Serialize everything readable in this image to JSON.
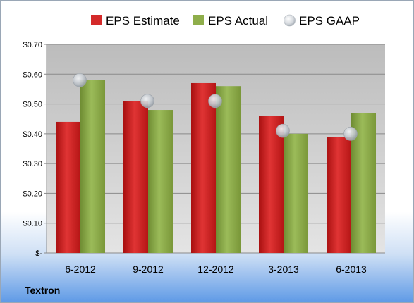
{
  "company": "Textron",
  "chart_data": {
    "type": "bar",
    "categories": [
      "6-2012",
      "9-2012",
      "12-2012",
      "3-2013",
      "6-2013"
    ],
    "series": [
      {
        "name": "EPS Estimate",
        "type": "bar",
        "color": "#c41e1e",
        "values": [
          0.44,
          0.51,
          0.57,
          0.46,
          0.39
        ]
      },
      {
        "name": "EPS Actual",
        "type": "bar",
        "color": "#86a443",
        "values": [
          0.58,
          0.48,
          0.56,
          0.4,
          0.47
        ]
      },
      {
        "name": "EPS GAAP",
        "type": "scatter",
        "color": "#c7ccd3",
        "values": [
          0.58,
          0.51,
          0.51,
          0.41,
          0.4
        ]
      }
    ],
    "ylim": [
      0,
      0.7
    ],
    "yticks": [
      0,
      0.1,
      0.2,
      0.3,
      0.4,
      0.5,
      0.6,
      0.7
    ],
    "ytick_labels": [
      "$-",
      "$0.10",
      "$0.20",
      "$0.30",
      "$0.40",
      "$0.50",
      "$0.60",
      "$0.70"
    ],
    "legend_position": "top",
    "grid": true
  }
}
